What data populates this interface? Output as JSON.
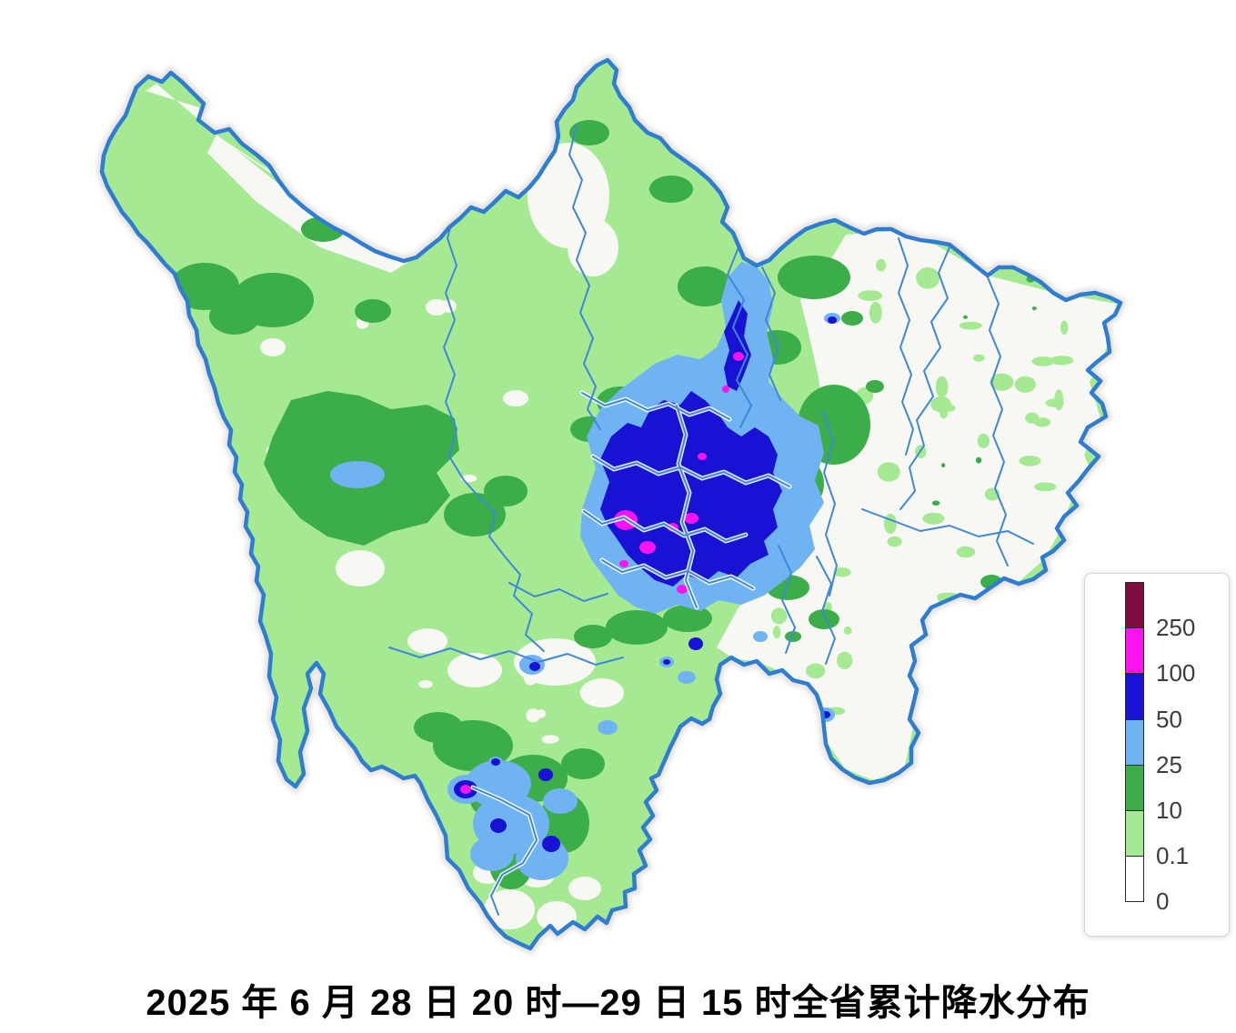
{
  "title": "2025 年 6 月 28 日 20 时—29 日 15 时全省累计降水分布",
  "legend": {
    "levels": [
      {
        "color": "#7E0D3F",
        "label": "250"
      },
      {
        "color": "#FB13F0",
        "label": "100"
      },
      {
        "color": "#1712D4",
        "label": "50"
      },
      {
        "color": "#6FB3F2",
        "label": "25"
      },
      {
        "color": "#3BAE49",
        "label": "10"
      },
      {
        "color": "#A6E993",
        "label": "0.1"
      },
      {
        "color": "#FFFFFF",
        "label": "0"
      }
    ]
  },
  "palette": {
    "rain_over_250": "#7E0D3F",
    "rain_100_250": "#FB13F0",
    "rain_50_100": "#1712D4",
    "rain_25_50": "#6FB3F2",
    "rain_10_25": "#3BAE49",
    "rain_01_10": "#A6E993",
    "rain_0": "#F7F7F4",
    "province_border": "#2F7DD1",
    "district_border": "#3F87D9",
    "background": "#FFFFFF",
    "title_color": "#000000",
    "legend_text": "#3C3C3C"
  }
}
